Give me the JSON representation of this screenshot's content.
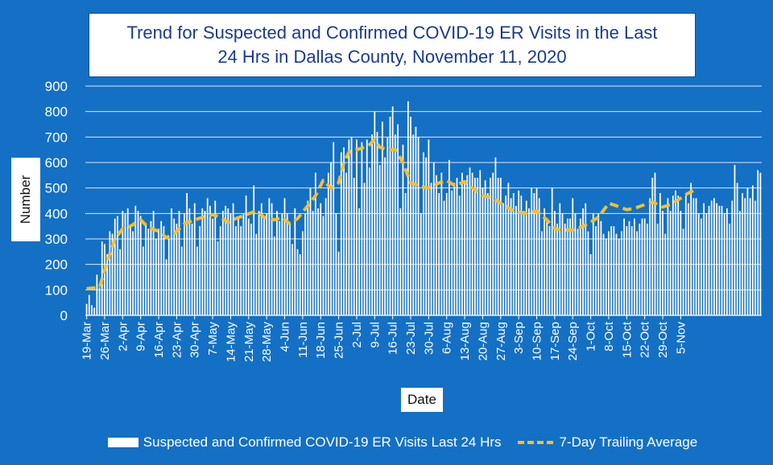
{
  "title_line1": "Trend for Suspected and Confirmed COVID-19 ER Visits in the Last",
  "title_line2": "24 Hrs in Dallas County, November 11, 2020",
  "ylabel": "Number",
  "xlabel": "Date",
  "legend": {
    "bars": "Suspected and Confirmed COVID-19 ER Visits Last 24 Hrs",
    "line": "7-Day Trailing Average"
  },
  "colors": {
    "background": "#1470C4",
    "bars": "#FFFFFF",
    "line": "#F2C12E",
    "grid": "#FFFFFF"
  },
  "chart_data": {
    "type": "bar",
    "title": "Trend for Suspected and Confirmed COVID-19 ER Visits in the Last 24 Hrs in Dallas County, November 11, 2020",
    "xlabel": "Date",
    "ylabel": "Number",
    "ylim": [
      0,
      900
    ],
    "yticks": [
      0,
      100,
      200,
      300,
      400,
      500,
      600,
      700,
      800,
      900
    ],
    "grid": true,
    "legend_position": "bottom",
    "x_tick_labels": [
      "19-Mar",
      "26-Mar",
      "2-Apr",
      "9-Apr",
      "16-Apr",
      "23-Apr",
      "30-Apr",
      "7-May",
      "14-May",
      "21-May",
      "28-May",
      "4-Jun",
      "11-Jun",
      "18-Jun",
      "25-Jun",
      "2-Jul",
      "9-Jul",
      "16-Jul",
      "23-Jul",
      "30-Jul",
      "6-Aug",
      "13-Aug",
      "20-Aug",
      "27-Aug",
      "3-Sep",
      "10-Sep",
      "17-Sep",
      "24-Sep",
      "1-Oct",
      "8-Oct",
      "15-Oct",
      "22-Oct",
      "29-Oct",
      "5-Nov"
    ],
    "series": [
      {
        "name": "Suspected and Confirmed COVID-19 ER Visits Last 24 Hrs",
        "type": "bar",
        "start_date": "19-Mar",
        "values": [
          45,
          80,
          40,
          30,
          160,
          110,
          290,
          280,
          240,
          330,
          320,
          380,
          390,
          260,
          410,
          400,
          420,
          350,
          330,
          430,
          410,
          390,
          270,
          360,
          340,
          370,
          410,
          300,
          340,
          370,
          350,
          220,
          300,
          420,
          380,
          360,
          410,
          270,
          400,
          480,
          420,
          360,
          440,
          270,
          350,
          420,
          410,
          460,
          430,
          380,
          450,
          290,
          350,
          410,
          430,
          420,
          400,
          440,
          350,
          380,
          350,
          400,
          470,
          380,
          360,
          510,
          320,
          410,
          440,
          380,
          400,
          460,
          440,
          310,
          410,
          370,
          400,
          460,
          400,
          360,
          280,
          420,
          260,
          240,
          330,
          400,
          450,
          500,
          410,
          560,
          420,
          440,
          390,
          460,
          560,
          600,
          680,
          400,
          250,
          640,
          660,
          560,
          690,
          700,
          540,
          690,
          420,
          680,
          520,
          690,
          580,
          710,
          800,
          720,
          590,
          760,
          620,
          700,
          780,
          820,
          710,
          750,
          420,
          670,
          480,
          840,
          780,
          710,
          740,
          700,
          400,
          640,
          620,
          690,
          520,
          600,
          550,
          480,
          560,
          450,
          480,
          610,
          490,
          520,
          540,
          470,
          560,
          530,
          550,
          580,
          560,
          540,
          540,
          570,
          500,
          530,
          480,
          540,
          560,
          620,
          540,
          540,
          440,
          470,
          520,
          460,
          480,
          430,
          490,
          470,
          410,
          450,
          420,
          500,
          480,
          500,
          460,
          330,
          420,
          380,
          350,
          500,
          410,
          360,
          440,
          400,
          360,
          380,
          380,
          460,
          400,
          340,
          380,
          420,
          440,
          330,
          240,
          400,
          350,
          400,
          370,
          320,
          300,
          330,
          350,
          350,
          320,
          300,
          330,
          380,
          350,
          370,
          350,
          380,
          330,
          360,
          380,
          380,
          360,
          460,
          540,
          560,
          360,
          480,
          410,
          320,
          460,
          410,
          470,
          490,
          470,
          410,
          340,
          470,
          440,
          520,
          460,
          460,
          400,
          380,
          440,
          400,
          430,
          450,
          460,
          440,
          430,
          430,
          400,
          420,
          360,
          450,
          590,
          520,
          410,
          480,
          460,
          500,
          460,
          510,
          450,
          570,
          560
        ]
      },
      {
        "name": "7-Day Trailing Average",
        "type": "line",
        "points": [
          [
            "19-Mar",
            105
          ],
          [
            "24-Mar",
            110
          ],
          [
            "27-Mar",
            210
          ],
          [
            "30-Mar",
            300
          ],
          [
            "2-Apr",
            340
          ],
          [
            "5-Apr",
            350
          ],
          [
            "9-Apr",
            375
          ],
          [
            "12-Apr",
            345
          ],
          [
            "16-Apr",
            330
          ],
          [
            "19-Apr",
            305
          ],
          [
            "22-Apr",
            320
          ],
          [
            "26-Apr",
            360
          ],
          [
            "30-Apr",
            375
          ],
          [
            "3-May",
            385
          ],
          [
            "7-May",
            395
          ],
          [
            "10-May",
            385
          ],
          [
            "13-May",
            365
          ],
          [
            "16-May",
            380
          ],
          [
            "20-May",
            395
          ],
          [
            "24-May",
            410
          ],
          [
            "27-May",
            385
          ],
          [
            "31-May",
            375
          ],
          [
            "3-Jun",
            385
          ],
          [
            "6-Jun",
            360
          ],
          [
            "9-Jun",
            380
          ],
          [
            "13-Jun",
            430
          ],
          [
            "16-Jun",
            470
          ],
          [
            "19-Jun",
            530
          ],
          [
            "22-Jun",
            500
          ],
          [
            "25-Jun",
            520
          ],
          [
            "27-Jun",
            600
          ],
          [
            "29-Jun",
            640
          ],
          [
            "2-Jul",
            650
          ],
          [
            "5-Jul",
            660
          ],
          [
            "7-Jul",
            670
          ],
          [
            "9-Jul",
            690
          ],
          [
            "11-Jul",
            660
          ],
          [
            "14-Jul",
            650
          ],
          [
            "17-Jul",
            650
          ],
          [
            "20-Jul",
            600
          ],
          [
            "23-Jul",
            520
          ],
          [
            "27-Jul",
            505
          ],
          [
            "30-Jul",
            500
          ],
          [
            "3-Aug",
            520
          ],
          [
            "6-Aug",
            530
          ],
          [
            "9-Aug",
            510
          ],
          [
            "13-Aug",
            525
          ],
          [
            "16-Aug",
            500
          ],
          [
            "20-Aug",
            470
          ],
          [
            "24-Aug",
            460
          ],
          [
            "27-Aug",
            440
          ],
          [
            "31-Aug",
            415
          ],
          [
            "3-Sep",
            405
          ],
          [
            "6-Sep",
            400
          ],
          [
            "10-Sep",
            410
          ],
          [
            "14-Sep",
            375
          ],
          [
            "17-Sep",
            340
          ],
          [
            "20-Sep",
            335
          ],
          [
            "24-Sep",
            335
          ],
          [
            "27-Sep",
            345
          ],
          [
            "30-Sep",
            360
          ],
          [
            "4-Oct",
            385
          ],
          [
            "8-Oct",
            440
          ],
          [
            "11-Oct",
            430
          ],
          [
            "15-Oct",
            415
          ],
          [
            "18-Oct",
            420
          ],
          [
            "22-Oct",
            435
          ],
          [
            "25-Oct",
            445
          ],
          [
            "29-Oct",
            425
          ],
          [
            "1-Nov",
            435
          ],
          [
            "5-Nov",
            460
          ],
          [
            "8-Nov",
            480
          ],
          [
            "11-Nov",
            495
          ]
        ]
      }
    ]
  }
}
